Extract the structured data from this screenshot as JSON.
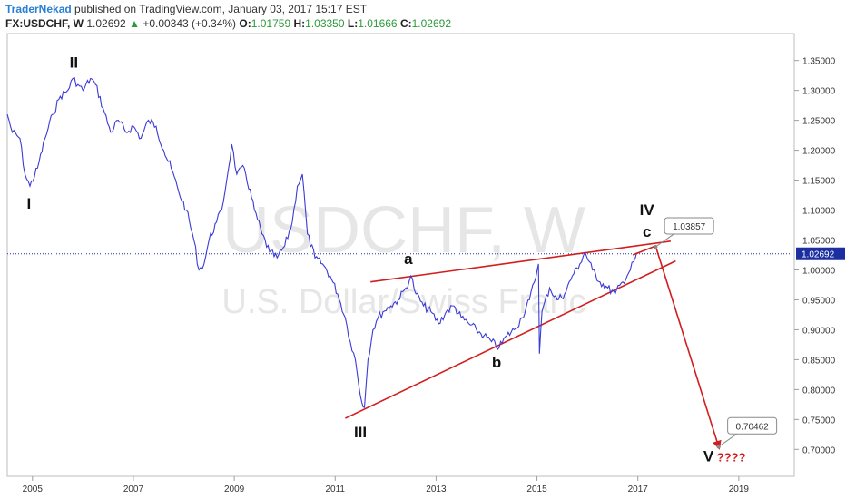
{
  "header": {
    "author": "TraderNekad",
    "published": "published on TradingView.com, January 03, 2017 15:17 EST",
    "symbol": "FX:USDCHF, W",
    "last": "1.02692",
    "change": "+0.00343 (+0.34%)",
    "open_label": "O:",
    "open": "1.01759",
    "high_label": "H:",
    "high": "1.03350",
    "low_label": "L:",
    "low": "1.01666",
    "close_label": "C:",
    "close": "1.02692"
  },
  "watermark": {
    "line1": "USDCHF, W",
    "line2": "U.S. Dollar/Swiss Franc"
  },
  "colors": {
    "price": "#3b3bd6",
    "annotation": "#d21e1e",
    "up": "#2b9a3a",
    "price_badge": "#1c2fa0"
  },
  "chart_data": {
    "type": "line",
    "x_ticks": [
      "2005",
      "2007",
      "2009",
      "2011",
      "2013",
      "2015",
      "2017",
      "2019"
    ],
    "y_ticks": [
      "1.35000",
      "1.30000",
      "1.25000",
      "1.20000",
      "1.15000",
      "1.10000",
      "1.05000",
      "1.00000",
      "0.95000",
      "0.90000",
      "0.85000",
      "0.80000",
      "0.75000",
      "0.70000"
    ],
    "xlim": [
      2004.5,
      2020.1
    ],
    "ylim": [
      0.655,
      1.395
    ],
    "current_price": 1.02692,
    "current_price_label": "1.02692",
    "series": [
      {
        "x": [
          2004.5,
          2004.6,
          2004.75,
          2004.85,
          2004.95,
          2005.1,
          2005.25,
          2005.4,
          2005.55,
          2005.7,
          2005.8,
          2005.9,
          2006.0,
          2006.15,
          2006.25,
          2006.4,
          2006.55,
          2006.7,
          2006.85,
          2007.0,
          2007.15,
          2007.3,
          2007.45,
          2007.6,
          2007.75,
          2007.9,
          2008.05,
          2008.2,
          2008.3,
          2008.4,
          2008.5,
          2008.65,
          2008.75,
          2008.85,
          2008.95,
          2009.05,
          2009.2,
          2009.4,
          2009.55,
          2009.7,
          2009.85,
          2010.0,
          2010.15,
          2010.25,
          2010.35,
          2010.45,
          2010.6,
          2010.75,
          2010.9,
          2011.05,
          2011.2,
          2011.3,
          2011.4,
          2011.5,
          2011.58,
          2011.65,
          2011.75,
          2011.85,
          2011.95,
          2012.1,
          2012.25,
          2012.4,
          2012.5,
          2012.6,
          2012.75,
          2012.9,
          2013.05,
          2013.2,
          2013.35,
          2013.5,
          2013.65,
          2013.8,
          2013.95,
          2014.1,
          2014.25,
          2014.4,
          2014.55,
          2014.7,
          2014.85,
          2014.95,
          2015.03,
          2015.05,
          2015.1,
          2015.25,
          2015.4,
          2015.55,
          2015.7,
          2015.85,
          2015.95,
          2016.1,
          2016.25,
          2016.4,
          2016.55,
          2016.7,
          2016.85,
          2016.95,
          2017.0
        ],
        "values": [
          1.26,
          1.23,
          1.22,
          1.16,
          1.14,
          1.17,
          1.22,
          1.26,
          1.29,
          1.3,
          1.32,
          1.31,
          1.3,
          1.32,
          1.31,
          1.27,
          1.23,
          1.25,
          1.23,
          1.24,
          1.22,
          1.25,
          1.24,
          1.2,
          1.17,
          1.13,
          1.1,
          1.05,
          1.0,
          1.01,
          1.05,
          1.08,
          1.1,
          1.15,
          1.21,
          1.16,
          1.17,
          1.1,
          1.06,
          1.03,
          1.02,
          1.04,
          1.08,
          1.14,
          1.16,
          1.06,
          1.02,
          1.01,
          0.99,
          0.96,
          0.92,
          0.88,
          0.85,
          0.79,
          0.77,
          0.85,
          0.9,
          0.92,
          0.93,
          0.94,
          0.95,
          0.97,
          0.99,
          0.96,
          0.94,
          0.93,
          0.91,
          0.93,
          0.94,
          0.92,
          0.91,
          0.9,
          0.89,
          0.88,
          0.87,
          0.89,
          0.9,
          0.92,
          0.95,
          0.98,
          1.01,
          0.86,
          0.93,
          0.97,
          0.95,
          0.96,
          0.99,
          1.01,
          1.03,
          1.0,
          0.98,
          0.97,
          0.96,
          0.98,
          1.0,
          1.02,
          1.027
        ]
      }
    ],
    "wave_labels": [
      {
        "text": "I",
        "x": 2004.93,
        "y": 1.102
      },
      {
        "text": "II",
        "x": 2005.82,
        "y": 1.338
      },
      {
        "text": "III",
        "x": 2011.5,
        "y": 0.72
      },
      {
        "text": "a",
        "x": 2012.45,
        "y": 1.01
      },
      {
        "text": "b",
        "x": 2014.2,
        "y": 0.837
      },
      {
        "text": "c",
        "x": 2017.18,
        "y": 1.055
      },
      {
        "text": "IV",
        "x": 2017.18,
        "y": 1.092
      },
      {
        "text": "V",
        "x": 2018.4,
        "y": 0.68
      },
      {
        "text": "????",
        "x": 2018.85,
        "y": 0.68
      }
    ],
    "trendlines": [
      {
        "x": [
          2011.2,
          2017.75
        ],
        "y": [
          0.752,
          1.015
        ]
      },
      {
        "x": [
          2011.7,
          2017.65
        ],
        "y": [
          0.98,
          1.048
        ]
      }
    ],
    "projection": {
      "x": [
        2016.9,
        2017.35,
        2018.6
      ],
      "y": [
        1.025,
        1.04,
        0.705
      ]
    },
    "price_callouts": [
      {
        "label": "1.03857",
        "x": 2017.35,
        "y": 1.0386
      },
      {
        "label": "0.70462",
        "x": 2018.6,
        "y": 0.7046
      }
    ]
  }
}
